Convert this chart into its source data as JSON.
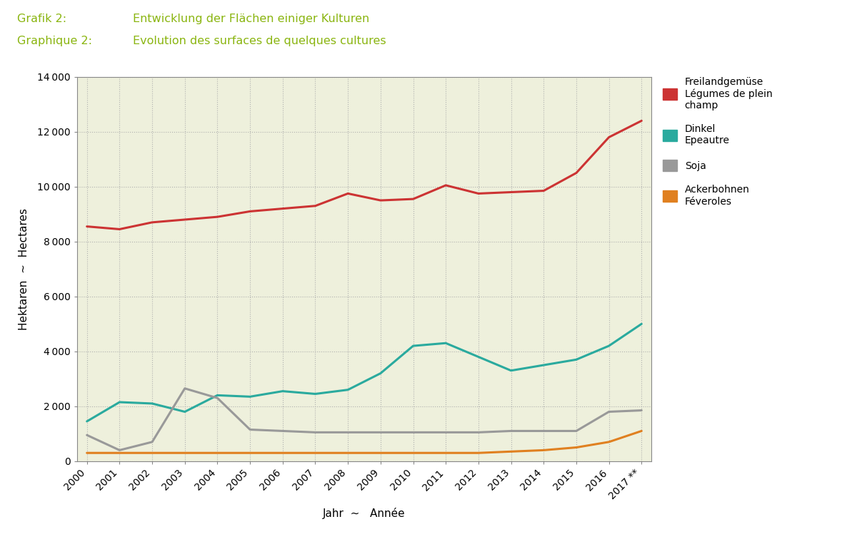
{
  "title_line1": "Grafik 2:",
  "title_line2": "Graphique 2:",
  "title_text1": "Entwicklung der Flächen einiger Kulturen",
  "title_text2": "Evolution des surfaces de quelques cultures",
  "title_color": "#8ab510",
  "xlabel": "Jahr  ~   Année",
  "ylabel": "Hektaren  ~  Hectares",
  "years": [
    2000,
    2001,
    2002,
    2003,
    2004,
    2005,
    2006,
    2007,
    2008,
    2009,
    2010,
    2011,
    2012,
    2013,
    2014,
    2015,
    2016,
    2017
  ],
  "freiland": [
    8550,
    8450,
    8700,
    8800,
    8900,
    9100,
    9200,
    9300,
    9750,
    9500,
    9550,
    10050,
    9750,
    9800,
    9850,
    10500,
    11800,
    12400
  ],
  "dinkel": [
    1450,
    2150,
    2100,
    1800,
    2400,
    2350,
    2550,
    2450,
    2600,
    3200,
    4200,
    4300,
    3800,
    3300,
    3500,
    3700,
    4200,
    5000
  ],
  "soja": [
    950,
    400,
    700,
    2650,
    2300,
    1150,
    1100,
    1050,
    1050,
    1050,
    1050,
    1050,
    1050,
    1100,
    1100,
    1100,
    1800,
    1850
  ],
  "ackerbohnen": [
    300,
    300,
    300,
    300,
    300,
    300,
    300,
    300,
    300,
    300,
    300,
    300,
    300,
    350,
    400,
    500,
    700,
    1100
  ],
  "freiland_color": "#cc3333",
  "dinkel_color": "#2aaa9e",
  "soja_color": "#999999",
  "ackerbohnen_color": "#e08020",
  "plot_bg_color": "#eef0dc",
  "grid_color": "#aaaaaa",
  "ylim": [
    0,
    14000
  ],
  "yticks": [
    0,
    2000,
    4000,
    6000,
    8000,
    10000,
    12000,
    14000
  ],
  "legend_labels": [
    "Freilandgemüse\nLégumes de plein\nchamp",
    "Dinkel\nEpeautre",
    "Soja",
    "Ackerbohnen\nFéveroles"
  ],
  "legend_colors": [
    "#cc3333",
    "#2aaa9e",
    "#999999",
    "#e08020"
  ],
  "line_width": 2.2
}
